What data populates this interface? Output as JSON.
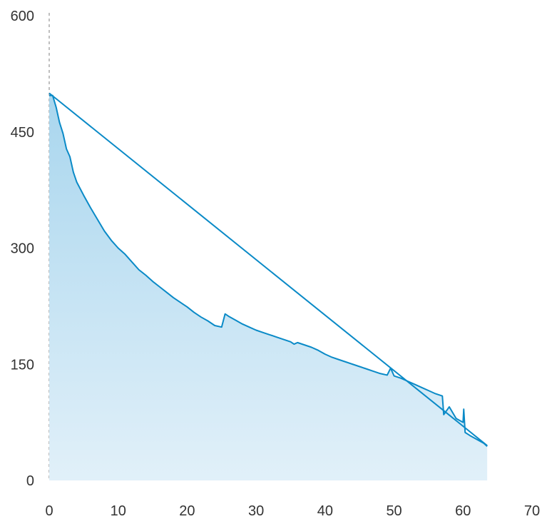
{
  "chart_data": {
    "type": "area",
    "title": "",
    "xlabel": "",
    "ylabel": "",
    "xlim": [
      0,
      70
    ],
    "ylim": [
      0,
      600
    ],
    "x_ticks": [
      "0",
      "10",
      "20",
      "30",
      "40",
      "50",
      "60",
      "70"
    ],
    "y_ticks": [
      "0",
      "150",
      "300",
      "450",
      "600"
    ],
    "grid": false,
    "legend": "none",
    "colors": {
      "line": "#0a8ac7",
      "fill_top": "#a9d6ee",
      "fill_bottom": "#e1f0f9",
      "axis_dashed": "#aaaaaa"
    },
    "series": [
      {
        "type": "area",
        "x": [
          0,
          0.5,
          1,
          1.5,
          2,
          2.5,
          3,
          3.5,
          4,
          5,
          6,
          7,
          8,
          9,
          10,
          11,
          12,
          13,
          14,
          15,
          16,
          17,
          18,
          19,
          20,
          21,
          22,
          23,
          24,
          25,
          25.5,
          26,
          27,
          28,
          29,
          30,
          31,
          32,
          33,
          34,
          35,
          35.5,
          36,
          37,
          38,
          39,
          40,
          41,
          42,
          43,
          44,
          45,
          46,
          47,
          48,
          49,
          49.5,
          50,
          51,
          52,
          53,
          54,
          55,
          56,
          57,
          57.2,
          58,
          59,
          60,
          60.1,
          60.3,
          61,
          62,
          63,
          63.5
        ],
        "values": [
          497,
          497,
          482,
          462,
          448,
          428,
          418,
          398,
          385,
          368,
          352,
          337,
          322,
          310,
          300,
          292,
          282,
          272,
          265,
          257,
          250,
          243,
          236,
          230,
          224,
          217,
          211,
          206,
          200,
          198,
          215,
          212,
          207,
          202,
          198,
          194,
          191,
          188,
          185,
          182,
          179,
          176,
          178,
          175,
          172,
          168,
          163,
          159,
          156,
          153,
          150,
          147,
          144,
          141,
          138,
          136,
          145,
          135,
          132,
          128,
          124,
          120,
          116,
          112,
          109,
          85,
          95,
          80,
          75,
          92,
          62,
          58,
          53,
          48,
          44
        ]
      },
      {
        "type": "line",
        "x": [
          0,
          63.5
        ],
        "values": [
          500,
          45
        ]
      }
    ]
  }
}
